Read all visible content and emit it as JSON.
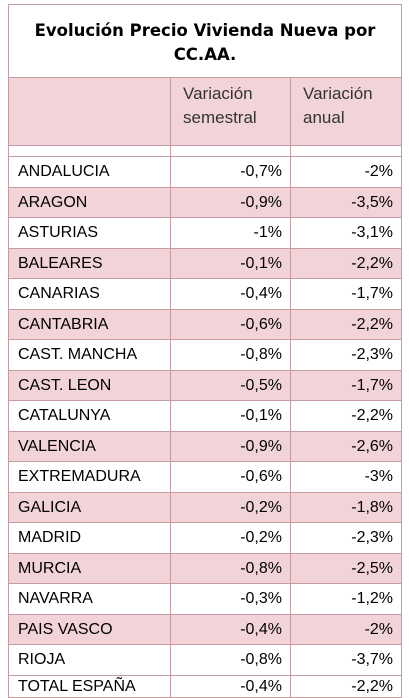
{
  "title": "Evolución Precio Vivienda Nueva por CC.AA.",
  "headers": {
    "region": "",
    "semestral": "Variación semestral",
    "anual": "Variación anual"
  },
  "rows": [
    {
      "region": "ANDALUCIA",
      "semestral": "-0,7%",
      "anual": "-2%"
    },
    {
      "region": "ARAGON",
      "semestral": "-0,9%",
      "anual": "-3,5%"
    },
    {
      "region": "ASTURIAS",
      "semestral": "-1%",
      "anual": "-3,1%"
    },
    {
      "region": "BALEARES",
      "semestral": "-0,1%",
      "anual": "-2,2%"
    },
    {
      "region": "CANARIAS",
      "semestral": "-0,4%",
      "anual": "-1,7%"
    },
    {
      "region": "CANTABRIA",
      "semestral": "-0,6%",
      "anual": "-2,2%"
    },
    {
      "region": "CAST. MANCHA",
      "semestral": "-0,8%",
      "anual": "-2,3%"
    },
    {
      "region": "CAST. LEON",
      "semestral": "-0,5%",
      "anual": "-1,7%"
    },
    {
      "region": "CATALUNYA",
      "semestral": "-0,1%",
      "anual": "-2,2%"
    },
    {
      "region": "VALENCIA",
      "semestral": "-0,9%",
      "anual": "-2,6%"
    },
    {
      "region": "EXTREMADURA",
      "semestral": "-0,6%",
      "anual": "-3%"
    },
    {
      "region": "GALICIA",
      "semestral": "-0,2%",
      "anual": "-1,8%"
    },
    {
      "region": "MADRID",
      "semestral": "-0,2%",
      "anual": "-2,3%"
    },
    {
      "region": "MURCIA",
      "semestral": "-0,8%",
      "anual": "-2,5%"
    },
    {
      "region": "NAVARRA",
      "semestral": "-0,3%",
      "anual": "-1,2%"
    },
    {
      "region": "PAIS VASCO",
      "semestral": "-0,4%",
      "anual": "-2%"
    },
    {
      "region": "RIOJA",
      "semestral": "-0,8%",
      "anual": "-3,7%"
    }
  ],
  "total": {
    "region": "TOTAL ESPAÑA",
    "semestral": "-0,4%",
    "anual": "-2,2%"
  },
  "colors": {
    "band": "#f2d4d8",
    "border": "#c89aa2"
  }
}
